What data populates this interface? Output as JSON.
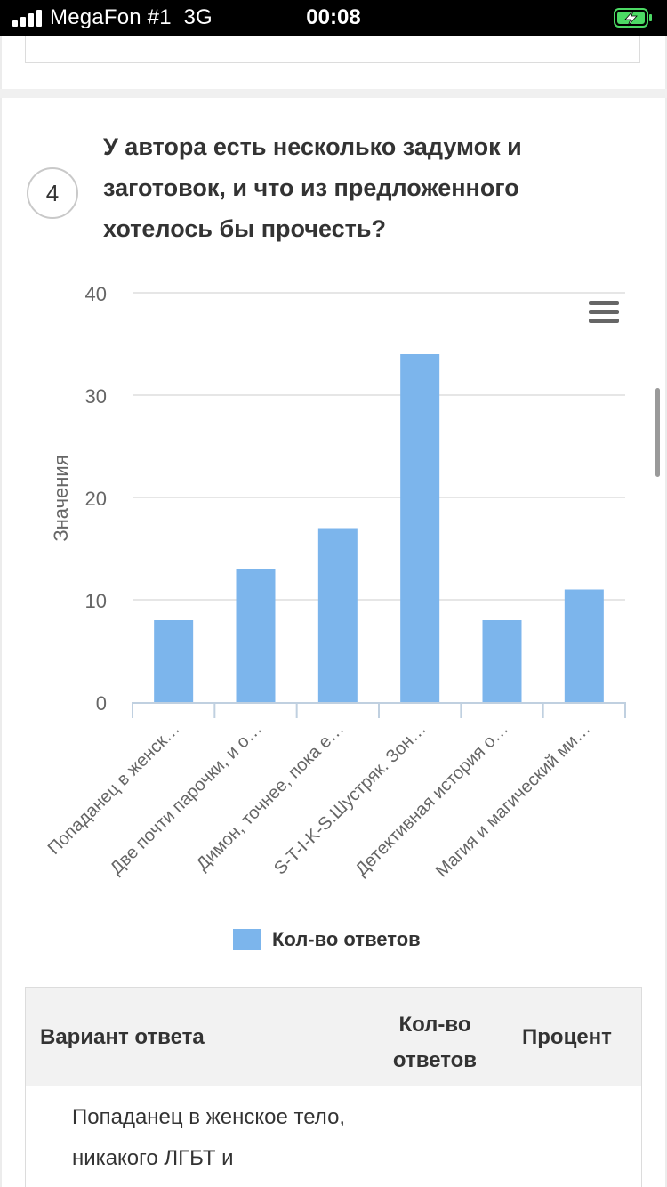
{
  "status_bar": {
    "carrier": "MegaFon #1  3G",
    "time": "00:08"
  },
  "question": {
    "number": "4",
    "title": "У автора есть несколько задумок и заготовок, и что из предложенного хотелось бы прочесть?"
  },
  "chart_data": {
    "type": "bar",
    "categories": [
      "Попаданец в женск…",
      "Две почти парочки, и о…",
      "Димон, точнее, пока е…",
      "S-T-I-K-S.Шустряк. Зон…",
      "Детективная история о…",
      "Магия и магический ми…"
    ],
    "series": [
      {
        "name": "Кол-во ответов",
        "values": [
          8,
          13,
          17,
          34,
          8,
          11
        ]
      }
    ],
    "ylabel": "Значения",
    "ylim": [
      0,
      40
    ],
    "yticks": [
      0,
      10,
      20,
      30,
      40
    ],
    "grid": true,
    "legend": "bottom",
    "color": "#7cb5ec"
  },
  "table": {
    "headers": {
      "answer": "Вариант ответа",
      "count": "Кол-во ответов",
      "percent": "Процент"
    },
    "rows": [
      {
        "answer": "Попаданец в женское тело, никакого ЛГБТ и"
      }
    ]
  }
}
